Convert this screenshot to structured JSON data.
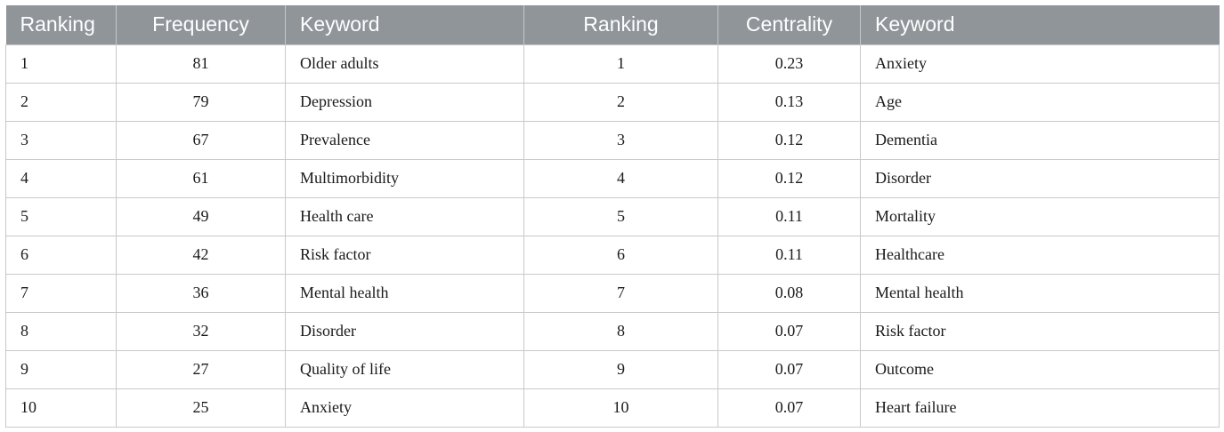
{
  "table": {
    "headers": [
      "Ranking",
      "Frequency",
      "Keyword",
      "Ranking",
      "Centrality",
      "Keyword"
    ],
    "rows": [
      [
        "1",
        "81",
        "Older adults",
        "1",
        "0.23",
        "Anxiety"
      ],
      [
        "2",
        "79",
        "Depression",
        "2",
        "0.13",
        "Age"
      ],
      [
        "3",
        "67",
        "Prevalence",
        "3",
        "0.12",
        "Dementia"
      ],
      [
        "4",
        "61",
        "Multimorbidity",
        "4",
        "0.12",
        "Disorder"
      ],
      [
        "5",
        "49",
        "Health care",
        "5",
        "0.11",
        "Mortality"
      ],
      [
        "6",
        "42",
        "Risk factor",
        "6",
        "0.11",
        "Healthcare"
      ],
      [
        "7",
        "36",
        "Mental health",
        "7",
        "0.08",
        "Mental health"
      ],
      [
        "8",
        "32",
        "Disorder",
        "8",
        "0.07",
        "Risk factor"
      ],
      [
        "9",
        "27",
        "Quality of life",
        "9",
        "0.07",
        "Outcome"
      ],
      [
        "10",
        "25",
        "Anxiety",
        "10",
        "0.07",
        "Heart failure"
      ]
    ]
  },
  "colors": {
    "header_bg": "#8f9599",
    "header_text": "#ffffff",
    "grid": "#c9c9c9"
  }
}
